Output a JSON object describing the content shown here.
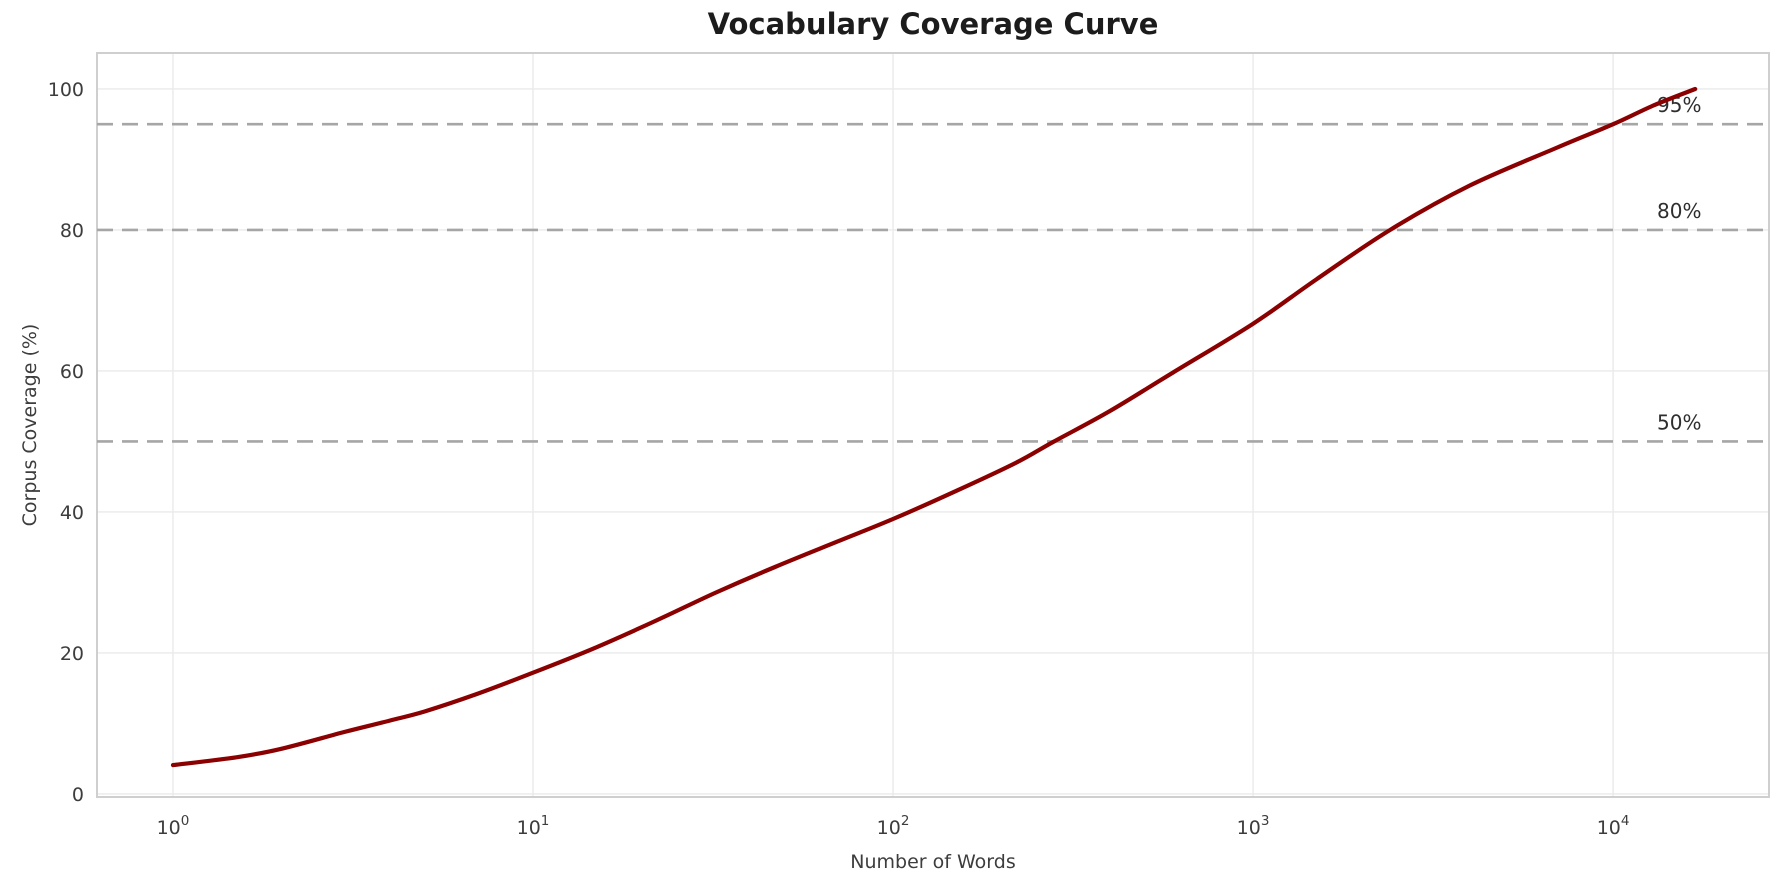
{
  "chart_data": {
    "type": "line",
    "title": "Vocabulary Coverage Curve",
    "xlabel": "Number of Words",
    "ylabel": "Corpus Coverage (%)",
    "x_scale": "log",
    "x_tick_base": "10",
    "x_tick_exponents": [
      "0",
      "1",
      "2",
      "3",
      "4"
    ],
    "y_tick_labels": [
      "0",
      "20",
      "40",
      "60",
      "80",
      "100"
    ],
    "y_ticks": [
      0,
      20,
      40,
      60,
      80,
      100
    ],
    "xlim_log": [
      -0.211,
      4.433
    ],
    "ylim": [
      -0.43,
      105.1
    ],
    "grid": true,
    "legend": "none",
    "reference_lines": [
      {
        "y": 50,
        "label": "50%"
      },
      {
        "y": 80,
        "label": "80%"
      },
      {
        "y": 95,
        "label": "95%"
      }
    ],
    "series": [
      {
        "name": "coverage",
        "color": "#8B0000",
        "points": [
          [
            1,
            4.1
          ],
          [
            1.5,
            5.2
          ],
          [
            2,
            6.4
          ],
          [
            3,
            8.8
          ],
          [
            4,
            10.4
          ],
          [
            5,
            11.7
          ],
          [
            7,
            14.2
          ],
          [
            10,
            17.2
          ],
          [
            15,
            20.8
          ],
          [
            22,
            24.6
          ],
          [
            32,
            28.5
          ],
          [
            47,
            32.2
          ],
          [
            70,
            35.8
          ],
          [
            100,
            39.0
          ],
          [
            150,
            43.0
          ],
          [
            220,
            47.0
          ],
          [
            280,
            50.0
          ],
          [
            400,
            54.3
          ],
          [
            600,
            59.8
          ],
          [
            1000,
            66.7
          ],
          [
            1500,
            73.0
          ],
          [
            2400,
            80.0
          ],
          [
            4000,
            86.3
          ],
          [
            7000,
            91.7
          ],
          [
            10000,
            95.0
          ],
          [
            13000,
            97.7
          ],
          [
            16900,
            100.0
          ]
        ]
      }
    ],
    "colors": {
      "curve": "#8B0000",
      "reference_dash": "#a6a6a6",
      "grid": "#eaeaea",
      "spine": "#cfcfcf",
      "tick_text": "#3d3d3d",
      "title_text": "#1c1c1c"
    }
  }
}
